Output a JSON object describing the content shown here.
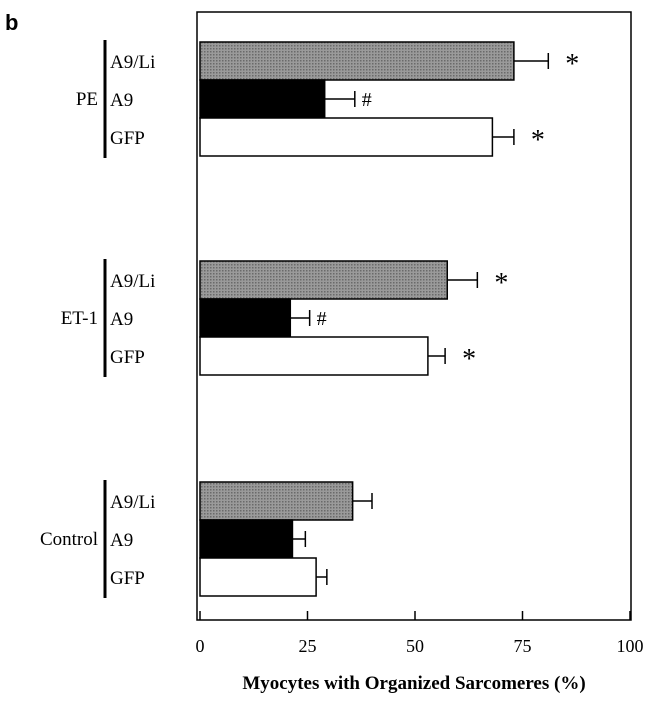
{
  "panel_label": "b",
  "chart_data": {
    "type": "bar",
    "orientation": "horizontal",
    "xlabel": "Myocytes with Organized Sarcomeres (%)",
    "xlim": [
      0,
      100
    ],
    "xticks": [
      0,
      25,
      50,
      75,
      100
    ],
    "grid": false,
    "legend": "none",
    "groups": [
      {
        "name": "PE",
        "bars": [
          {
            "label": "A9/Li",
            "value": 73,
            "error": 8,
            "annotation": "*",
            "fill": "pattern-gray"
          },
          {
            "label": "A9",
            "value": 29,
            "error": 7,
            "annotation": "#",
            "fill": "#000000"
          },
          {
            "label": "GFP",
            "value": 68,
            "error": 5,
            "annotation": "*",
            "fill": "#ffffff"
          }
        ]
      },
      {
        "name": "ET-1",
        "bars": [
          {
            "label": "A9/Li",
            "value": 57.5,
            "error": 7,
            "annotation": "*",
            "fill": "pattern-gray"
          },
          {
            "label": "A9",
            "value": 21,
            "error": 4.5,
            "annotation": "#",
            "fill": "#000000"
          },
          {
            "label": "GFP",
            "value": 53,
            "error": 4,
            "annotation": "*",
            "fill": "#ffffff"
          }
        ]
      },
      {
        "name": "Control",
        "bars": [
          {
            "label": "A9/Li",
            "value": 35.5,
            "error": 4.5,
            "annotation": "",
            "fill": "pattern-gray"
          },
          {
            "label": "A9",
            "value": 21.5,
            "error": 3,
            "annotation": "",
            "fill": "#000000"
          },
          {
            "label": "GFP",
            "value": 27,
            "error": 2.5,
            "annotation": "",
            "fill": "#ffffff"
          }
        ]
      }
    ]
  }
}
